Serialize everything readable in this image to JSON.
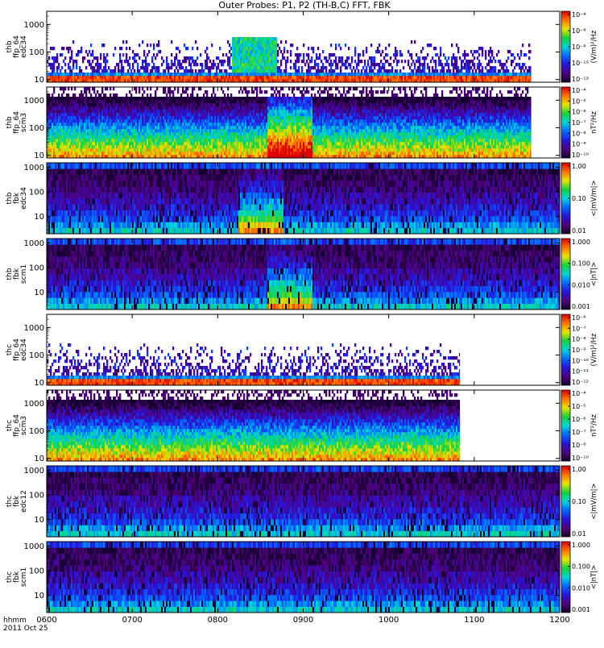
{
  "title": "Outer Probes: P1, P2 (TH-B,C) FFT, FBK",
  "chart_data": {
    "type": "heatmap",
    "title": "Outer Probes: P1, P2 (TH-B,C) FFT, FBK",
    "x_axis": {
      "ticks": [
        "0600",
        "0700",
        "0800",
        "0900",
        "1000",
        "1100",
        "1200"
      ],
      "range": [
        "06:00",
        "12:00"
      ],
      "label_lines": [
        "hhmm",
        "2011 Oct 25"
      ]
    },
    "y_scale": "log",
    "grid": false,
    "panels": [
      {
        "ylabel": [
          "thb",
          "ffp_64",
          "edc34"
        ],
        "yticks": [
          "10",
          "100",
          "1000"
        ],
        "ylim": [
          8,
          3000
        ],
        "cbar_ticks": [
          "10⁻¹³",
          "10⁻¹⁰",
          "10⁻⁸",
          "10⁻⁶",
          "10⁻⁴"
        ],
        "cbar_label": "(V/m)²/Hz",
        "data_end": "11:40",
        "style": "sparse",
        "event": "08:25"
      },
      {
        "ylabel": [
          "thb",
          "ffp_64",
          "scm3"
        ],
        "yticks": [
          "10",
          "100",
          "1000"
        ],
        "ylim": [
          8,
          3000
        ],
        "cbar_ticks": [
          "10⁻¹⁰",
          "10⁻⁹",
          "10⁻⁸",
          "10⁻⁷",
          "10⁻⁶",
          "10⁻⁵",
          "10⁻⁴"
        ],
        "cbar_label": "nT²/Hz",
        "data_end": "11:40",
        "style": "dense",
        "event": "08:50"
      },
      {
        "ylabel": [
          "thb",
          "fbk",
          "edc34"
        ],
        "yticks": [
          "10",
          "100",
          "1000"
        ],
        "ylim": [
          2,
          1500
        ],
        "cbar_ticks": [
          "0.01",
          "0.10",
          "1.00"
        ],
        "cbar_label": "<|mV/m|>",
        "data_end": "12:00",
        "style": "fbk",
        "event": "08:30"
      },
      {
        "ylabel": [
          "thb",
          "fbk",
          "scm1"
        ],
        "yticks": [
          "10",
          "100",
          "1000"
        ],
        "ylim": [
          2,
          1500
        ],
        "cbar_ticks": [
          "0.001",
          "0.010",
          "0.100",
          "1.000"
        ],
        "cbar_label": "<|nT|>",
        "data_end": "12:00",
        "style": "fbk",
        "event": "08:50"
      },
      {
        "ylabel": [
          "thc",
          "ffp_64",
          "edc34"
        ],
        "yticks": [
          "10",
          "100",
          "1000"
        ],
        "ylim": [
          8,
          3000
        ],
        "cbar_ticks": [
          "10⁻¹²",
          "10⁻¹¹",
          "10⁻¹⁰",
          "10⁻⁹",
          "10⁻⁸",
          "10⁻⁷",
          "10⁻⁶"
        ],
        "cbar_label": "(V/m)²/Hz",
        "data_end": "10:50",
        "style": "sparse",
        "event": null
      },
      {
        "ylabel": [
          "thc",
          "ffp_64",
          "scm3"
        ],
        "yticks": [
          "10",
          "100",
          "1000"
        ],
        "ylim": [
          8,
          3000
        ],
        "cbar_ticks": [
          "10⁻¹⁰",
          "10⁻⁸",
          "10⁻⁷",
          "10⁻⁶",
          "10⁻⁵",
          "10⁻⁴"
        ],
        "cbar_label": "nT²/Hz",
        "data_end": "10:50",
        "style": "dense",
        "event": null
      },
      {
        "ylabel": [
          "thc",
          "fbk",
          "edc12"
        ],
        "yticks": [
          "10",
          "100",
          "1000"
        ],
        "ylim": [
          2,
          1500
        ],
        "cbar_ticks": [
          "0.01",
          "0.10",
          "1.00"
        ],
        "cbar_label": "<|mV/m|>",
        "data_end": "12:00",
        "style": "fbk",
        "event": null
      },
      {
        "ylabel": [
          "thc",
          "fbk",
          "scm1"
        ],
        "yticks": [
          "10",
          "100",
          "1000"
        ],
        "ylim": [
          2,
          1500
        ],
        "cbar_ticks": [
          "0.001",
          "0.010",
          "0.100",
          "1.000"
        ],
        "cbar_label": "<|nT|>",
        "data_end": "12:00",
        "style": "fbk",
        "event": null
      }
    ]
  }
}
